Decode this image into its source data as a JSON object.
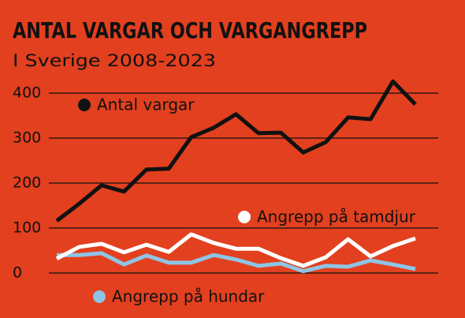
{
  "chart_data": {
    "type": "line",
    "title": "ANTAL VARGAR OCH VARGANGREPP",
    "subtitle": "I Sverige 2008-2023",
    "categories": [
      null,
      null,
      null,
      null,
      null,
      null,
      null,
      null,
      null,
      null,
      null,
      null,
      null,
      null,
      null,
      null,
      null
    ],
    "series": [
      {
        "name": "Antal vargar",
        "color": "#111111",
        "values": [
          116,
          154,
          195,
          181,
          230,
          232,
          302,
          323,
          353,
          311,
          312,
          268,
          291,
          346,
          342,
          426,
          375
        ]
      },
      {
        "name": "Angrepp på tamdjur",
        "color": "#ffffff",
        "values": [
          32,
          58,
          65,
          46,
          63,
          47,
          86,
          67,
          54,
          54,
          33,
          16,
          35,
          75,
          37,
          60,
          77
        ]
      },
      {
        "name": "Angrepp på hundar",
        "color": "#8ec5e6",
        "values": [
          40,
          40,
          44,
          19,
          39,
          23,
          23,
          40,
          30,
          16,
          21,
          4,
          16,
          14,
          28,
          19,
          9
        ]
      }
    ],
    "ylim": [
      0,
      400
    ],
    "yticks": [
      0,
      100,
      200,
      300,
      400
    ],
    "grid": true
  }
}
